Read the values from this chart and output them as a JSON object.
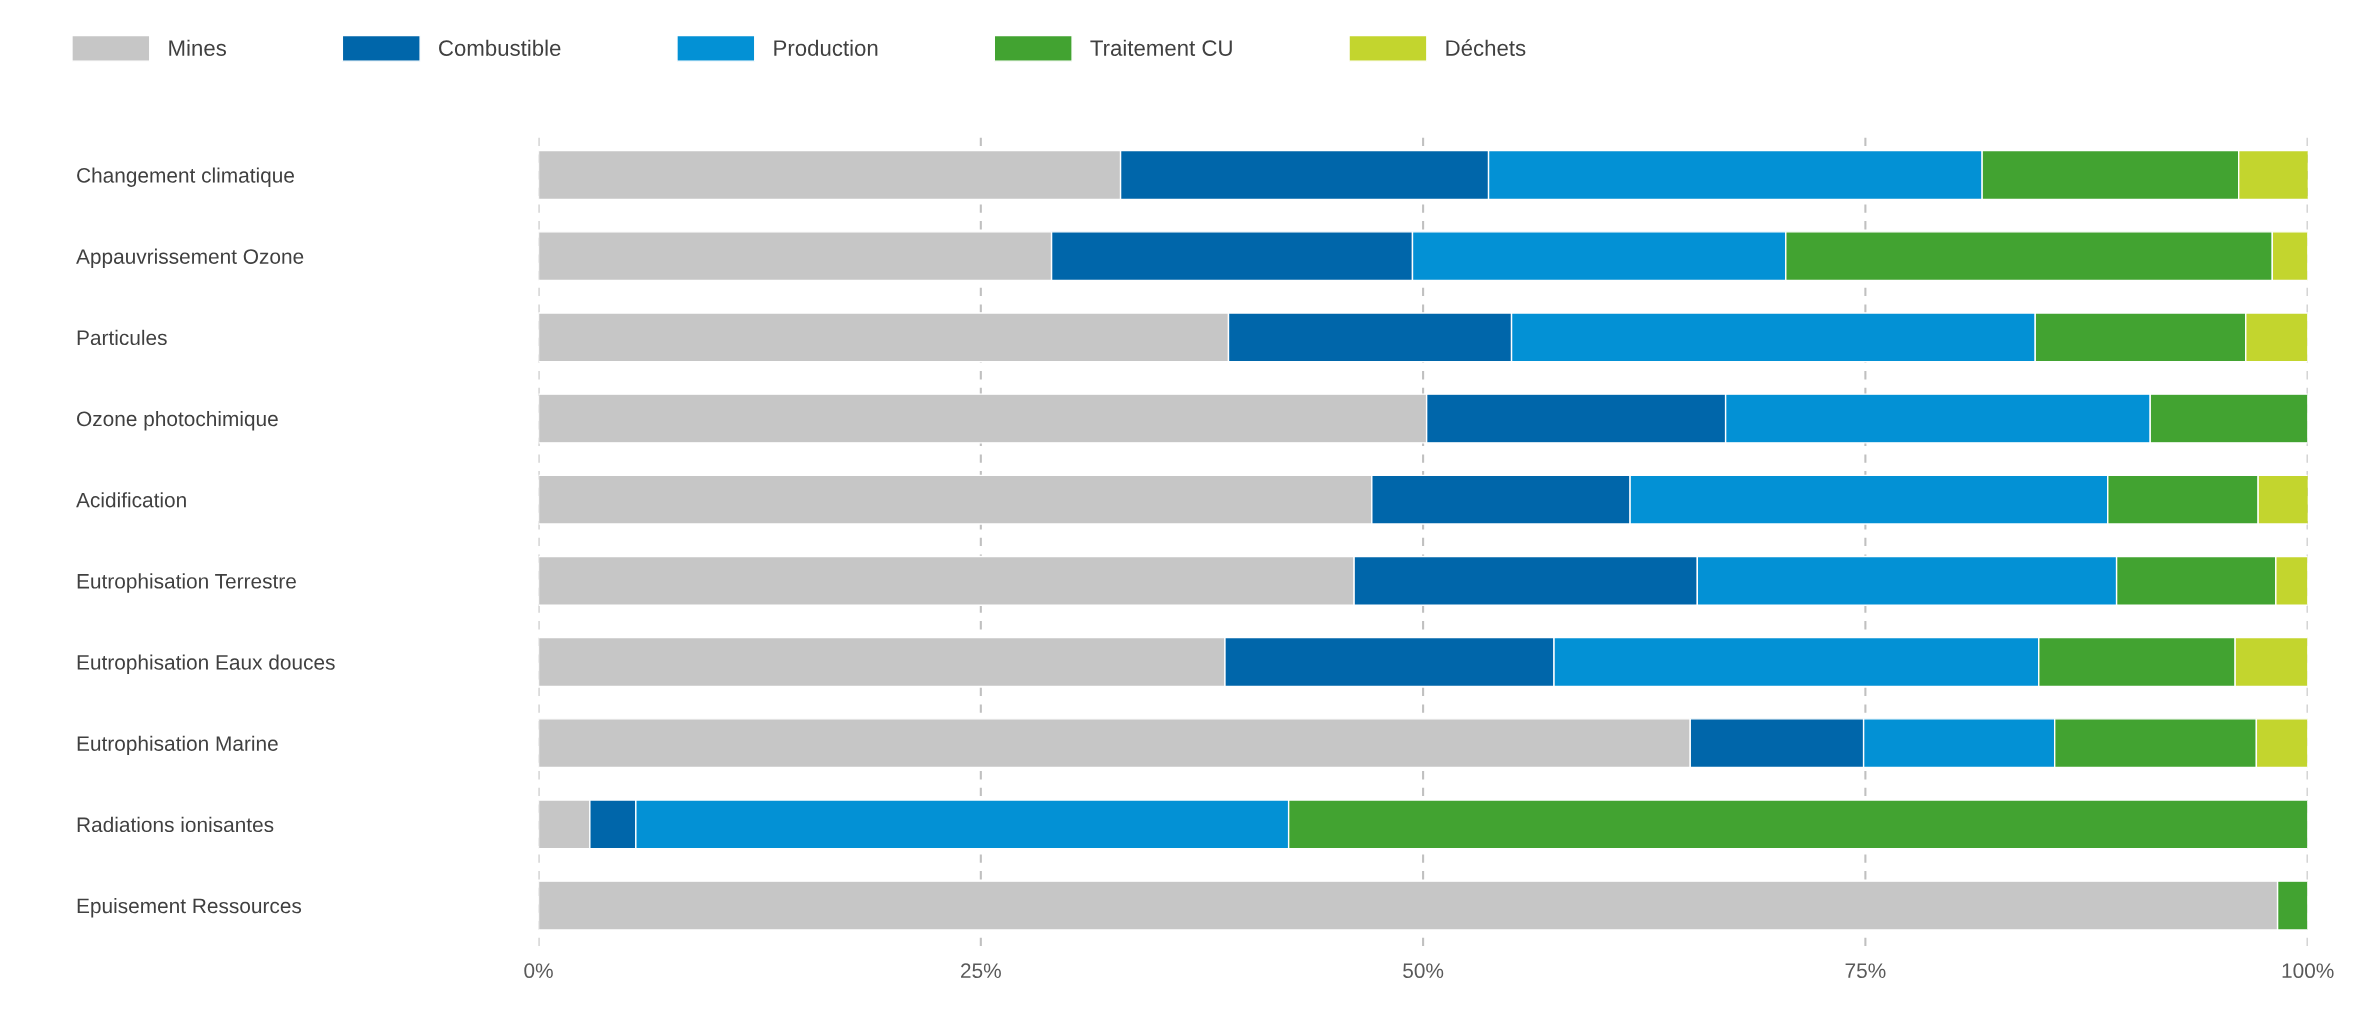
{
  "chart_data": {
    "type": "bar",
    "orientation": "horizontal",
    "stacked": true,
    "categories": [
      "Changement climatique",
      "Appauvrissement Ozone",
      "Particules",
      "Ozone photochimique",
      "Acidification",
      "Eutrophisation Terrestre",
      "Eutrophisation Eaux douces",
      "Eutrophisation Marine",
      "Radiations ionisantes",
      "Epuisement Ressources"
    ],
    "series": [
      {
        "name": "Mines",
        "color": "#c6c6c6",
        "values": [
          32.9,
          29.0,
          39.0,
          50.2,
          47.1,
          46.1,
          38.8,
          65.1,
          2.9,
          98.3
        ]
      },
      {
        "name": "Combustible",
        "color": "#0066aa",
        "values": [
          20.8,
          20.4,
          16.0,
          16.9,
          14.6,
          19.4,
          18.6,
          9.8,
          2.6,
          null
        ]
      },
      {
        "name": "Production",
        "color": "#0391d5",
        "values": [
          27.9,
          21.1,
          29.6,
          24.0,
          27.0,
          23.7,
          27.4,
          10.8,
          36.9,
          null
        ]
      },
      {
        "name": "Traitement CU",
        "color": "#42a331",
        "values": [
          14.5,
          27.5,
          11.9,
          8.9,
          8.5,
          9.0,
          11.1,
          11.4,
          57.6,
          1.7
        ]
      },
      {
        "name": "Déchets",
        "color": "#c3d52e",
        "values": [
          4.0,
          2.0,
          3.5,
          null,
          2.9,
          1.8,
          4.1,
          2.9,
          null,
          null
        ]
      }
    ],
    "xlim": [
      0,
      100
    ],
    "xticks": [
      {
        "value": 0,
        "label": "0%"
      },
      {
        "value": 25,
        "label": "25%"
      },
      {
        "value": 50,
        "label": "50%"
      },
      {
        "value": 75,
        "label": "75%"
      },
      {
        "value": 100,
        "label": "100%"
      }
    ],
    "grid": "x",
    "legend": "top"
  }
}
